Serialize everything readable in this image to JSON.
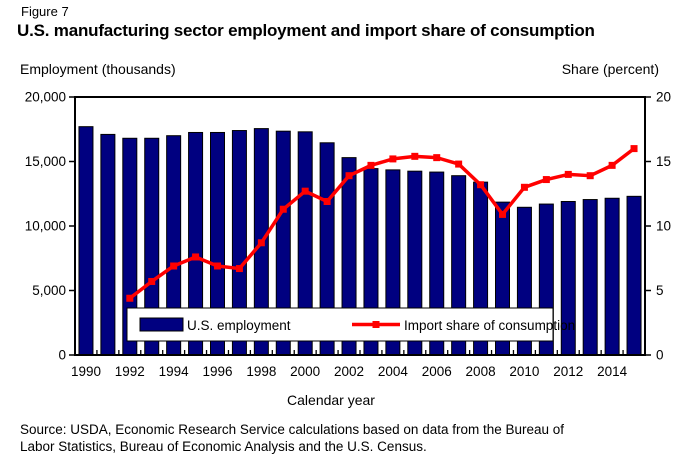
{
  "figure_label": "Figure 7",
  "title": "U.S. manufacturing sector employment and import share of consumption",
  "left_axis_header": "Employment (thousands)",
  "right_axis_header": "Share (percent)",
  "x_axis_title": "Calendar year",
  "source_line1": "Source: USDA, Economic Research Service calculations based on data from the Bureau of",
  "source_line2": "Labor Statistics, Bureau of Economic Analysis and the U.S. Census.",
  "colors": {
    "bar_fill": "#000080",
    "bar_stroke": "#000000",
    "line": "#FF0000",
    "axis": "#000000",
    "legend_bg": "#FFFFFF"
  },
  "chart_data": {
    "type": "bar",
    "subtype": "bar-line-combo",
    "categories": [
      1990,
      1991,
      1992,
      1993,
      1994,
      1995,
      1996,
      1997,
      1998,
      1999,
      2000,
      2001,
      2002,
      2003,
      2004,
      2005,
      2006,
      2007,
      2008,
      2009,
      2010,
      2011,
      2012,
      2013,
      2014,
      2015
    ],
    "series": [
      {
        "name": "U.S. employment",
        "type": "bar",
        "axis": "left",
        "values": [
          17700,
          17100,
          16800,
          16800,
          17000,
          17250,
          17250,
          17400,
          17550,
          17350,
          17300,
          16450,
          15300,
          14450,
          14350,
          14250,
          14180,
          13900,
          13400,
          11850,
          11450,
          11700,
          11900,
          12050,
          12150,
          12300
        ]
      },
      {
        "name": "Import share of consumption",
        "type": "line",
        "axis": "right",
        "values": [
          null,
          null,
          4.4,
          5.7,
          6.9,
          7.6,
          6.9,
          6.7,
          8.7,
          11.3,
          12.7,
          11.9,
          13.9,
          14.7,
          15.2,
          15.4,
          15.3,
          14.8,
          13.2,
          10.9,
          13.0,
          13.6,
          14.0,
          13.9,
          14.7,
          16.0
        ]
      }
    ],
    "left_axis": {
      "min": 0,
      "max": 20000,
      "tick_interval": 5000,
      "tick_labels": [
        "0",
        "5,000",
        "10,000",
        "15,000",
        "20,000"
      ]
    },
    "right_axis": {
      "min": 0,
      "max": 20,
      "tick_interval": 5,
      "tick_labels": [
        "0",
        "5",
        "10",
        "15",
        "20"
      ]
    },
    "x_tick_labels": [
      "1990",
      "1992",
      "1994",
      "1996",
      "1998",
      "2000",
      "2002",
      "2004",
      "2006",
      "2008",
      "2010",
      "2012",
      "2014"
    ],
    "legend_position": "bottom-inside",
    "grid": false
  }
}
